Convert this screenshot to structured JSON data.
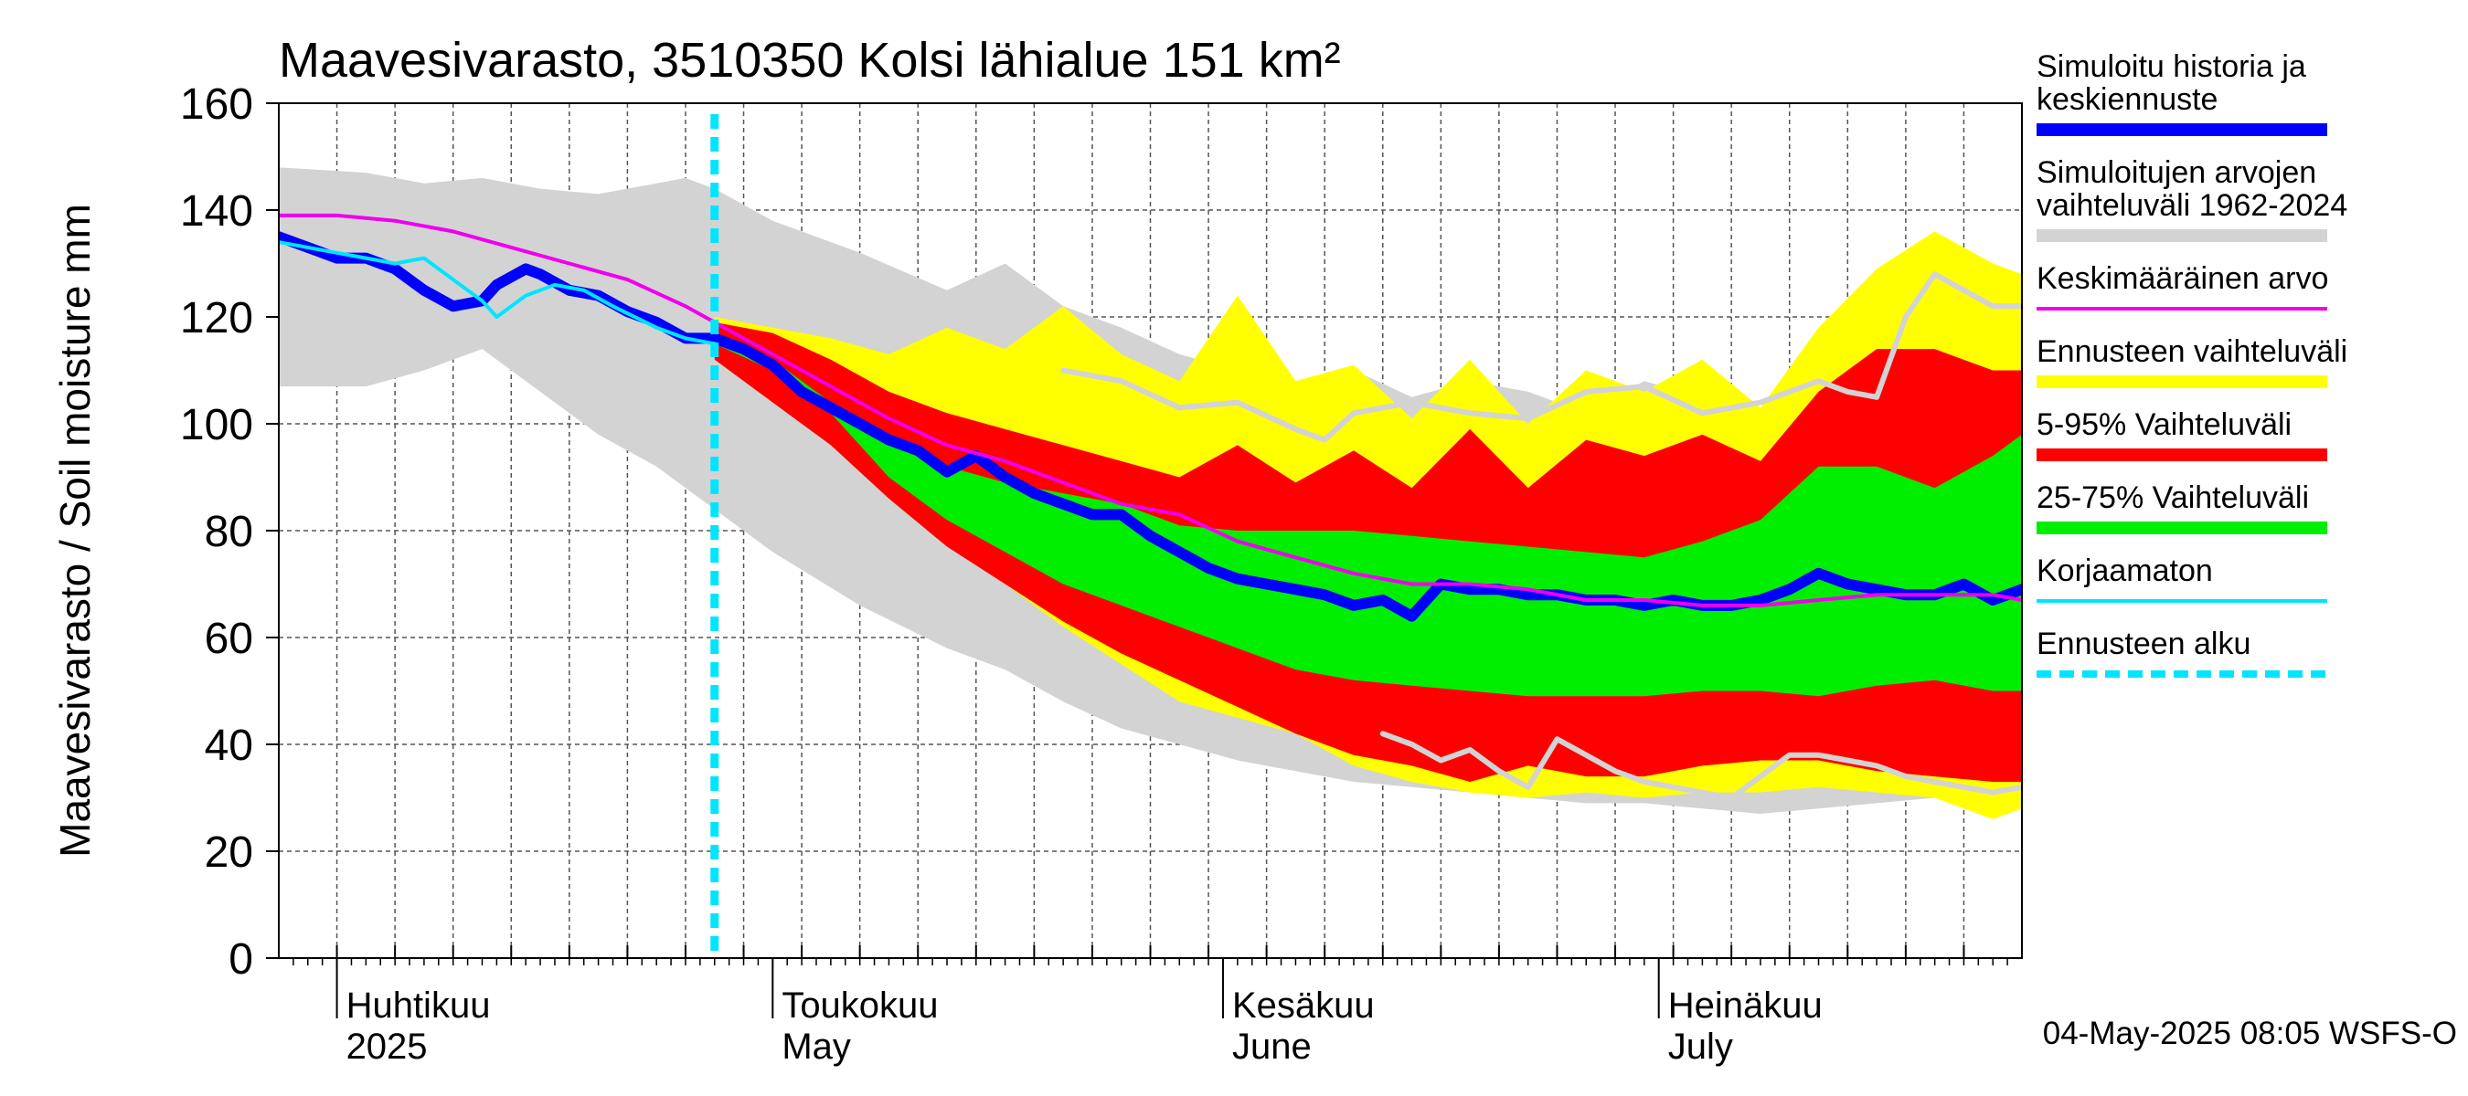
{
  "chart_data": {
    "type": "area",
    "title": "Maavesivarasto, 3510350 Kolsi lähialue 151 km²",
    "ylabel": "Maavesivarasto / Soil moisture   mm",
    "xlabel": "",
    "ylim": [
      0,
      160
    ],
    "yticks": [
      "0",
      "20",
      "40",
      "60",
      "80",
      "100",
      "120",
      "140",
      "160"
    ],
    "x_unit": "days since 2025-03-28",
    "xlim": [
      0,
      120
    ],
    "month_labels": [
      {
        "fi": "Huhtikuu",
        "en": "2025",
        "day": 4
      },
      {
        "fi": "Toukokuu",
        "en": "May",
        "day": 34
      },
      {
        "fi": "Kesäkuu",
        "en": "June",
        "day": 65
      },
      {
        "fi": "Heinäkuu",
        "en": "July",
        "day": 95
      }
    ],
    "forecast_start_day": 30,
    "timestamp": "04-May-2025 08:05 WSFS-O",
    "series": [
      {
        "name": "Simuloitujen arvojen vaihteluväli 1962-2024",
        "kind": "band",
        "color": "#d3d3d3",
        "x": [
          0,
          6,
          10,
          14,
          18,
          22,
          26,
          28,
          30,
          34,
          40,
          46,
          50,
          54,
          58,
          62,
          66,
          70,
          74,
          78,
          82,
          86,
          90,
          94,
          98,
          102,
          106,
          110,
          114,
          118,
          120
        ],
        "upper": [
          148,
          147,
          145,
          146,
          144,
          143,
          145,
          146,
          144,
          138,
          132,
          125,
          130,
          122,
          118,
          113,
          110,
          108,
          110,
          105,
          108,
          106,
          102,
          108,
          105,
          103,
          107,
          105,
          110,
          122,
          120
        ],
        "lower": [
          107,
          107,
          110,
          114,
          106,
          98,
          92,
          88,
          84,
          76,
          66,
          58,
          54,
          48,
          43,
          40,
          37,
          35,
          33,
          32,
          31,
          30,
          29,
          29,
          28,
          27,
          28,
          29,
          30,
          31,
          31
        ]
      },
      {
        "name": "Ennusteen vaihteluväli",
        "kind": "band",
        "color": "#ffff00",
        "x": [
          30,
          34,
          38,
          42,
          46,
          50,
          54,
          58,
          62,
          66,
          70,
          74,
          78,
          82,
          86,
          90,
          94,
          98,
          102,
          106,
          110,
          114,
          118,
          120
        ],
        "upper": [
          120,
          118,
          116,
          113,
          118,
          114,
          122,
          113,
          108,
          124,
          108,
          111,
          101,
          112,
          100,
          110,
          106,
          112,
          103,
          118,
          129,
          136,
          130,
          128
        ],
        "lower": [
          113,
          105,
          98,
          88,
          80,
          70,
          62,
          55,
          48,
          45,
          42,
          36,
          33,
          31,
          30,
          31,
          30,
          31,
          31,
          32,
          31,
          30,
          26,
          28
        ]
      },
      {
        "name": "5-95% Vaihteluväli",
        "kind": "band",
        "color": "#ff0000",
        "x": [
          30,
          34,
          38,
          42,
          46,
          50,
          54,
          58,
          62,
          66,
          70,
          74,
          78,
          82,
          86,
          90,
          94,
          98,
          102,
          106,
          110,
          114,
          118,
          120
        ],
        "upper": [
          119,
          117,
          112,
          106,
          102,
          99,
          96,
          93,
          90,
          96,
          89,
          95,
          88,
          99,
          88,
          97,
          94,
          98,
          93,
          106,
          114,
          114,
          110,
          110
        ],
        "lower": [
          112,
          104,
          96,
          86,
          77,
          70,
          63,
          57,
          52,
          47,
          42,
          38,
          36,
          33,
          36,
          34,
          34,
          36,
          37,
          37,
          35,
          34,
          33,
          33
        ]
      },
      {
        "name": "25-75% Vaihteluväli",
        "kind": "band",
        "color": "#00ee00",
        "x": [
          30,
          34,
          38,
          42,
          46,
          50,
          54,
          58,
          62,
          66,
          70,
          74,
          78,
          82,
          86,
          90,
          94,
          98,
          102,
          106,
          110,
          114,
          118,
          120
        ],
        "upper": [
          117,
          112,
          104,
          96,
          92,
          89,
          87,
          85,
          81,
          80,
          80,
          80,
          79,
          78,
          77,
          76,
          75,
          78,
          82,
          92,
          92,
          88,
          94,
          98
        ],
        "lower": [
          115,
          110,
          102,
          90,
          82,
          76,
          70,
          66,
          62,
          58,
          54,
          52,
          51,
          50,
          49,
          49,
          49,
          50,
          50,
          49,
          51,
          52,
          50,
          50
        ]
      },
      {
        "name": "Simuloitu historia ja keskiennuste",
        "kind": "line",
        "color": "#0000ff",
        "width": 12,
        "x": [
          0,
          2,
          4,
          6,
          8,
          10,
          12,
          14,
          15,
          17,
          18,
          20,
          22,
          24,
          26,
          28,
          30,
          32,
          34,
          36,
          38,
          40,
          42,
          44,
          46,
          48,
          50,
          52,
          54,
          56,
          58,
          60,
          62,
          64,
          66,
          68,
          70,
          72,
          74,
          76,
          78,
          80,
          82,
          84,
          86,
          88,
          90,
          92,
          94,
          96,
          98,
          100,
          102,
          104,
          106,
          108,
          110,
          112,
          114,
          116,
          118,
          120
        ],
        "y": [
          135,
          133,
          131,
          131,
          129,
          125,
          122,
          123,
          126,
          129,
          128,
          125,
          124,
          121,
          119,
          116,
          116,
          114,
          111,
          106,
          103,
          100,
          97,
          95,
          91,
          94,
          90,
          87,
          85,
          83,
          83,
          79,
          76,
          73,
          71,
          70,
          69,
          68,
          66,
          67,
          64,
          70,
          69,
          69,
          68,
          68,
          67,
          67,
          66,
          67,
          66,
          66,
          67,
          69,
          72,
          70,
          69,
          68,
          68,
          70,
          67,
          69
        ]
      },
      {
        "name": "Keskimääräinen arvo",
        "kind": "line",
        "color": "#ee00ee",
        "width": 4,
        "x": [
          0,
          4,
          8,
          12,
          16,
          20,
          24,
          28,
          30,
          34,
          38,
          42,
          46,
          50,
          54,
          58,
          62,
          66,
          70,
          74,
          78,
          82,
          86,
          90,
          94,
          98,
          102,
          106,
          110,
          114,
          118,
          120
        ],
        "y": [
          139,
          139,
          138,
          136,
          133,
          130,
          127,
          122,
          119,
          113,
          107,
          101,
          96,
          93,
          89,
          85,
          83,
          78,
          75,
          72,
          70,
          70,
          69,
          67,
          67,
          66,
          66,
          67,
          68,
          68,
          68,
          67
        ]
      },
      {
        "name": "Korjaamaton",
        "kind": "line",
        "color": "#00e5ff",
        "width": 4,
        "x": [
          0,
          4,
          8,
          10,
          12,
          14,
          15,
          17,
          19,
          21,
          23,
          26,
          28,
          30
        ],
        "y": [
          134,
          132,
          130,
          131,
          127,
          123,
          120,
          124,
          126,
          125,
          122,
          118,
          116,
          115
        ]
      },
      {
        "name": "Simulation max (grey upper edge)",
        "kind": "line",
        "color": "#d3d3d3",
        "width": 6,
        "x": [
          54,
          58,
          62,
          66,
          70,
          72,
          74,
          78,
          82,
          86,
          90,
          94,
          98,
          102,
          106,
          108,
          110,
          112,
          114,
          118,
          120
        ],
        "y": [
          110,
          108,
          103,
          104,
          99,
          97,
          102,
          104,
          102,
          101,
          106,
          107,
          102,
          104,
          108,
          106,
          105,
          120,
          128,
          122,
          122
        ]
      },
      {
        "name": "Simulation min (grey lower edge)",
        "kind": "line",
        "color": "#d3d3d3",
        "width": 6,
        "x": [
          76,
          78,
          80,
          82,
          84,
          86,
          88,
          90,
          92,
          94,
          96,
          100,
          104,
          106,
          108,
          110,
          112,
          114,
          116,
          118,
          120
        ],
        "y": [
          42,
          40,
          37,
          39,
          35,
          32,
          41,
          38,
          35,
          33,
          32,
          30,
          38,
          38,
          37,
          36,
          34,
          33,
          32,
          31,
          32
        ]
      }
    ],
    "legend": [
      {
        "label_lines": [
          "Simuloitu historia ja",
          "keskiennuste"
        ],
        "color": "#0000ff",
        "style": "thick"
      },
      {
        "label_lines": [
          "Simuloitujen arvojen",
          "vaihteluväli 1962-2024"
        ],
        "color": "#d3d3d3",
        "style": "thick"
      },
      {
        "label_lines": [
          "Keskimääräinen arvo"
        ],
        "color": "#ee00ee",
        "style": "thin"
      },
      {
        "label_lines": [
          "Ennusteen vaihteluväli"
        ],
        "color": "#ffff00",
        "style": "thick"
      },
      {
        "label_lines": [
          "5-95% Vaihteluväli"
        ],
        "color": "#ff0000",
        "style": "thick"
      },
      {
        "label_lines": [
          "25-75% Vaihteluväli"
        ],
        "color": "#00ee00",
        "style": "thick"
      },
      {
        "label_lines": [
          "Korjaamaton"
        ],
        "color": "#00e5ff",
        "style": "thin"
      },
      {
        "label_lines": [
          "Ennusteen alku"
        ],
        "color": "#00e5ff",
        "style": "dashed"
      }
    ]
  }
}
